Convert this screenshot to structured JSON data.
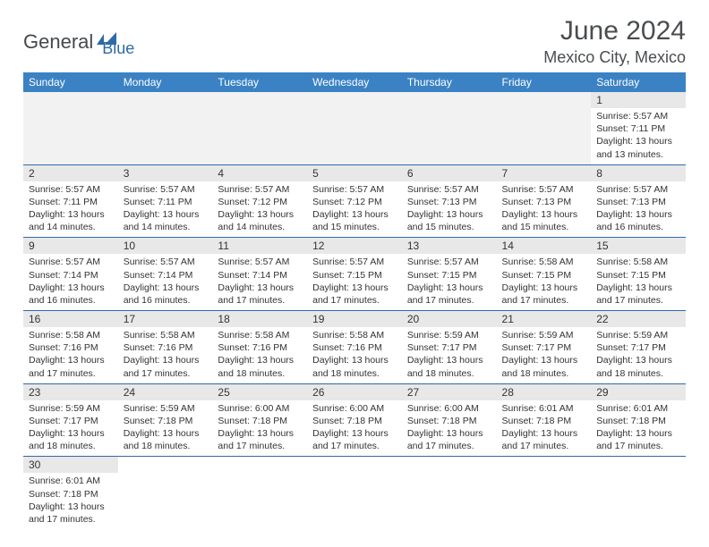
{
  "logo": {
    "word1": "General",
    "word2": "Blue"
  },
  "title": "June 2024",
  "location": "Mexico City, Mexico",
  "colors": {
    "header_bg": "#3b82c4",
    "header_text": "#ffffff",
    "daynum_bg": "#e8e8e8",
    "row_border": "#2f6aa8",
    "logo_gray": "#46494c",
    "logo_blue": "#2f6aa8"
  },
  "weekdays": [
    "Sunday",
    "Monday",
    "Tuesday",
    "Wednesday",
    "Thursday",
    "Friday",
    "Saturday"
  ],
  "weeks": [
    [
      null,
      null,
      null,
      null,
      null,
      null,
      {
        "n": "1",
        "sr": "Sunrise: 5:57 AM",
        "ss": "Sunset: 7:11 PM",
        "d1": "Daylight: 13 hours",
        "d2": "and 13 minutes."
      }
    ],
    [
      {
        "n": "2",
        "sr": "Sunrise: 5:57 AM",
        "ss": "Sunset: 7:11 PM",
        "d1": "Daylight: 13 hours",
        "d2": "and 14 minutes."
      },
      {
        "n": "3",
        "sr": "Sunrise: 5:57 AM",
        "ss": "Sunset: 7:11 PM",
        "d1": "Daylight: 13 hours",
        "d2": "and 14 minutes."
      },
      {
        "n": "4",
        "sr": "Sunrise: 5:57 AM",
        "ss": "Sunset: 7:12 PM",
        "d1": "Daylight: 13 hours",
        "d2": "and 14 minutes."
      },
      {
        "n": "5",
        "sr": "Sunrise: 5:57 AM",
        "ss": "Sunset: 7:12 PM",
        "d1": "Daylight: 13 hours",
        "d2": "and 15 minutes."
      },
      {
        "n": "6",
        "sr": "Sunrise: 5:57 AM",
        "ss": "Sunset: 7:13 PM",
        "d1": "Daylight: 13 hours",
        "d2": "and 15 minutes."
      },
      {
        "n": "7",
        "sr": "Sunrise: 5:57 AM",
        "ss": "Sunset: 7:13 PM",
        "d1": "Daylight: 13 hours",
        "d2": "and 15 minutes."
      },
      {
        "n": "8",
        "sr": "Sunrise: 5:57 AM",
        "ss": "Sunset: 7:13 PM",
        "d1": "Daylight: 13 hours",
        "d2": "and 16 minutes."
      }
    ],
    [
      {
        "n": "9",
        "sr": "Sunrise: 5:57 AM",
        "ss": "Sunset: 7:14 PM",
        "d1": "Daylight: 13 hours",
        "d2": "and 16 minutes."
      },
      {
        "n": "10",
        "sr": "Sunrise: 5:57 AM",
        "ss": "Sunset: 7:14 PM",
        "d1": "Daylight: 13 hours",
        "d2": "and 16 minutes."
      },
      {
        "n": "11",
        "sr": "Sunrise: 5:57 AM",
        "ss": "Sunset: 7:14 PM",
        "d1": "Daylight: 13 hours",
        "d2": "and 17 minutes."
      },
      {
        "n": "12",
        "sr": "Sunrise: 5:57 AM",
        "ss": "Sunset: 7:15 PM",
        "d1": "Daylight: 13 hours",
        "d2": "and 17 minutes."
      },
      {
        "n": "13",
        "sr": "Sunrise: 5:57 AM",
        "ss": "Sunset: 7:15 PM",
        "d1": "Daylight: 13 hours",
        "d2": "and 17 minutes."
      },
      {
        "n": "14",
        "sr": "Sunrise: 5:58 AM",
        "ss": "Sunset: 7:15 PM",
        "d1": "Daylight: 13 hours",
        "d2": "and 17 minutes."
      },
      {
        "n": "15",
        "sr": "Sunrise: 5:58 AM",
        "ss": "Sunset: 7:15 PM",
        "d1": "Daylight: 13 hours",
        "d2": "and 17 minutes."
      }
    ],
    [
      {
        "n": "16",
        "sr": "Sunrise: 5:58 AM",
        "ss": "Sunset: 7:16 PM",
        "d1": "Daylight: 13 hours",
        "d2": "and 17 minutes."
      },
      {
        "n": "17",
        "sr": "Sunrise: 5:58 AM",
        "ss": "Sunset: 7:16 PM",
        "d1": "Daylight: 13 hours",
        "d2": "and 17 minutes."
      },
      {
        "n": "18",
        "sr": "Sunrise: 5:58 AM",
        "ss": "Sunset: 7:16 PM",
        "d1": "Daylight: 13 hours",
        "d2": "and 18 minutes."
      },
      {
        "n": "19",
        "sr": "Sunrise: 5:58 AM",
        "ss": "Sunset: 7:16 PM",
        "d1": "Daylight: 13 hours",
        "d2": "and 18 minutes."
      },
      {
        "n": "20",
        "sr": "Sunrise: 5:59 AM",
        "ss": "Sunset: 7:17 PM",
        "d1": "Daylight: 13 hours",
        "d2": "and 18 minutes."
      },
      {
        "n": "21",
        "sr": "Sunrise: 5:59 AM",
        "ss": "Sunset: 7:17 PM",
        "d1": "Daylight: 13 hours",
        "d2": "and 18 minutes."
      },
      {
        "n": "22",
        "sr": "Sunrise: 5:59 AM",
        "ss": "Sunset: 7:17 PM",
        "d1": "Daylight: 13 hours",
        "d2": "and 18 minutes."
      }
    ],
    [
      {
        "n": "23",
        "sr": "Sunrise: 5:59 AM",
        "ss": "Sunset: 7:17 PM",
        "d1": "Daylight: 13 hours",
        "d2": "and 18 minutes."
      },
      {
        "n": "24",
        "sr": "Sunrise: 5:59 AM",
        "ss": "Sunset: 7:18 PM",
        "d1": "Daylight: 13 hours",
        "d2": "and 18 minutes."
      },
      {
        "n": "25",
        "sr": "Sunrise: 6:00 AM",
        "ss": "Sunset: 7:18 PM",
        "d1": "Daylight: 13 hours",
        "d2": "and 17 minutes."
      },
      {
        "n": "26",
        "sr": "Sunrise: 6:00 AM",
        "ss": "Sunset: 7:18 PM",
        "d1": "Daylight: 13 hours",
        "d2": "and 17 minutes."
      },
      {
        "n": "27",
        "sr": "Sunrise: 6:00 AM",
        "ss": "Sunset: 7:18 PM",
        "d1": "Daylight: 13 hours",
        "d2": "and 17 minutes."
      },
      {
        "n": "28",
        "sr": "Sunrise: 6:01 AM",
        "ss": "Sunset: 7:18 PM",
        "d1": "Daylight: 13 hours",
        "d2": "and 17 minutes."
      },
      {
        "n": "29",
        "sr": "Sunrise: 6:01 AM",
        "ss": "Sunset: 7:18 PM",
        "d1": "Daylight: 13 hours",
        "d2": "and 17 minutes."
      }
    ],
    [
      {
        "n": "30",
        "sr": "Sunrise: 6:01 AM",
        "ss": "Sunset: 7:18 PM",
        "d1": "Daylight: 13 hours",
        "d2": "and 17 minutes."
      },
      null,
      null,
      null,
      null,
      null,
      null
    ]
  ]
}
